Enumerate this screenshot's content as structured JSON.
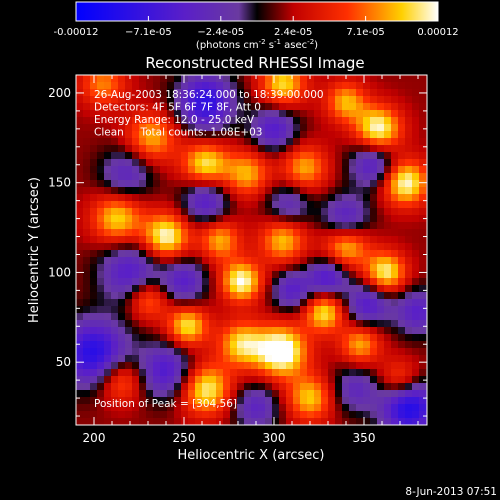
{
  "chart_data": {
    "type": "heatmap",
    "title": "Reconstructed RHESSI Image",
    "xlabel": "Heliocentric X (arcsec)",
    "ylabel": "Heliocentric Y (arcsec)",
    "xlim": [
      190,
      385
    ],
    "ylim": [
      15,
      210
    ],
    "x_ticks": [
      200,
      250,
      300,
      350
    ],
    "y_ticks": [
      50,
      100,
      150,
      200
    ],
    "annotations": [
      "26-Aug-2003 18:36:24.000 to 18:39:00.000",
      "Detectors: 4F 5F 6F 7F 8F, Att 0",
      "Energy Range: 12.0 - 25.0 keV",
      "Clean     Total counts: 1.08E+03"
    ],
    "peak_label": "Position of Peak = [304,56]",
    "peak_position": [
      304,
      56
    ],
    "colorbar": {
      "min": -0.00012,
      "max": 0.00012,
      "tick_labels": [
        "-0.00012",
        "−7.1e-05",
        "−2.4e-05",
        "2.4e-05",
        "7.1e-05",
        "0.00012"
      ],
      "units_prefix": "(photons cm",
      "units_sup1": "-2",
      "units_mid": " s",
      "units_sup2": "-1",
      "units_mid2": " asec",
      "units_sup3": "-2",
      "units_suffix": ")",
      "stops": [
        {
          "pos": 0.0,
          "color": "#0000ff"
        },
        {
          "pos": 0.3,
          "color": "#5a1fc8"
        },
        {
          "pos": 0.45,
          "color": "#6a3aa0"
        },
        {
          "pos": 0.5,
          "color": "#000000"
        },
        {
          "pos": 0.6,
          "color": "#c00000"
        },
        {
          "pos": 0.75,
          "color": "#ff3000"
        },
        {
          "pos": 0.9,
          "color": "#ffd000"
        },
        {
          "pos": 1.0,
          "color": "#ffffff"
        }
      ]
    },
    "blobs": [
      {
        "x": 304,
        "y": 56,
        "a": 1.0,
        "s": 10
      },
      {
        "x": 262,
        "y": 35,
        "a": 0.8,
        "s": 10
      },
      {
        "x": 305,
        "y": 205,
        "a": 0.7,
        "s": 9
      },
      {
        "x": 340,
        "y": 195,
        "a": 0.6,
        "s": 8
      },
      {
        "x": 358,
        "y": 180,
        "a": 0.85,
        "s": 9
      },
      {
        "x": 232,
        "y": 175,
        "a": 0.6,
        "s": 10
      },
      {
        "x": 262,
        "y": 160,
        "a": 0.75,
        "s": 9
      },
      {
        "x": 285,
        "y": 155,
        "a": 0.6,
        "s": 9
      },
      {
        "x": 317,
        "y": 158,
        "a": 0.6,
        "s": 9
      },
      {
        "x": 373,
        "y": 150,
        "a": 0.85,
        "s": 9
      },
      {
        "x": 213,
        "y": 130,
        "a": 0.7,
        "s": 10
      },
      {
        "x": 240,
        "y": 120,
        "a": 0.85,
        "s": 9
      },
      {
        "x": 270,
        "y": 118,
        "a": 0.6,
        "s": 8
      },
      {
        "x": 305,
        "y": 118,
        "a": 0.65,
        "s": 9
      },
      {
        "x": 340,
        "y": 115,
        "a": 0.7,
        "s": 9
      },
      {
        "x": 362,
        "y": 100,
        "a": 0.8,
        "s": 8
      },
      {
        "x": 282,
        "y": 95,
        "a": 0.85,
        "s": 8
      },
      {
        "x": 230,
        "y": 85,
        "a": 0.55,
        "s": 8
      },
      {
        "x": 252,
        "y": 70,
        "a": 0.75,
        "s": 8
      },
      {
        "x": 328,
        "y": 78,
        "a": 0.75,
        "s": 8
      },
      {
        "x": 348,
        "y": 60,
        "a": 0.6,
        "s": 8
      },
      {
        "x": 282,
        "y": 60,
        "a": 0.7,
        "s": 9
      },
      {
        "x": 320,
        "y": 30,
        "a": 0.65,
        "s": 9
      },
      {
        "x": 370,
        "y": 40,
        "a": 0.5,
        "s": 8
      },
      {
        "x": 215,
        "y": 40,
        "a": 0.55,
        "s": 9
      },
      {
        "x": 205,
        "y": 205,
        "a": 0.5,
        "s": 9
      },
      {
        "x": 200,
        "y": 55,
        "a": -0.9,
        "s": 13
      },
      {
        "x": 220,
        "y": 100,
        "a": -0.6,
        "s": 12
      },
      {
        "x": 250,
        "y": 95,
        "a": -0.55,
        "s": 9
      },
      {
        "x": 262,
        "y": 140,
        "a": -0.6,
        "s": 9
      },
      {
        "x": 218,
        "y": 155,
        "a": -0.5,
        "s": 10
      },
      {
        "x": 262,
        "y": 195,
        "a": -0.85,
        "s": 11
      },
      {
        "x": 300,
        "y": 180,
        "a": -0.6,
        "s": 9
      },
      {
        "x": 355,
        "y": 160,
        "a": -0.6,
        "s": 9
      },
      {
        "x": 340,
        "y": 130,
        "a": -0.6,
        "s": 9
      },
      {
        "x": 308,
        "y": 138,
        "a": -0.45,
        "s": 9
      },
      {
        "x": 330,
        "y": 97,
        "a": -0.65,
        "s": 8
      },
      {
        "x": 352,
        "y": 82,
        "a": -0.6,
        "s": 9
      },
      {
        "x": 380,
        "y": 78,
        "a": -0.55,
        "s": 9
      },
      {
        "x": 375,
        "y": 25,
        "a": -0.95,
        "s": 11
      },
      {
        "x": 290,
        "y": 25,
        "a": -0.5,
        "s": 9
      },
      {
        "x": 240,
        "y": 45,
        "a": -0.65,
        "s": 11
      },
      {
        "x": 310,
        "y": 90,
        "a": -0.55,
        "s": 8
      },
      {
        "x": 345,
        "y": 35,
        "a": -0.45,
        "s": 9
      }
    ]
  },
  "footer": {
    "date_label": "8-Jun-2013 07:51"
  }
}
